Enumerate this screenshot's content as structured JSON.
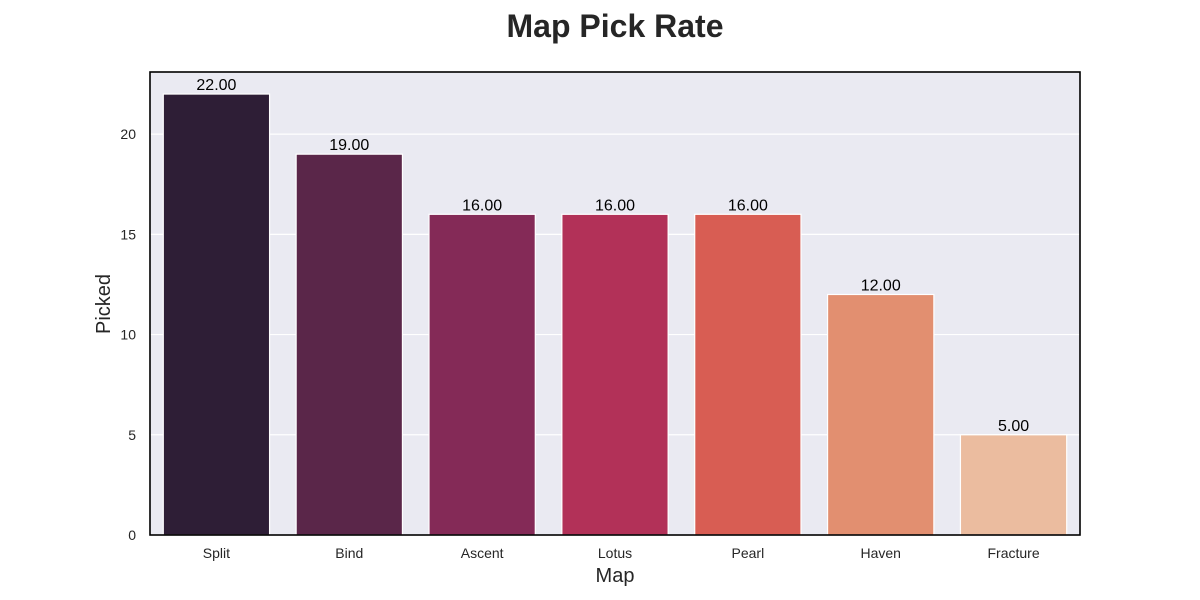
{
  "chart_data": {
    "type": "bar",
    "title": "Map Pick Rate",
    "xlabel": "Map",
    "ylabel": "Picked",
    "categories": [
      "Split",
      "Bind",
      "Ascent",
      "Lotus",
      "Pearl",
      "Haven",
      "Fracture"
    ],
    "values": [
      22,
      19,
      16,
      16,
      16,
      12,
      5
    ],
    "value_labels": [
      "22.00",
      "19.00",
      "16.00",
      "16.00",
      "16.00",
      "12.00",
      "5.00"
    ],
    "ylim": [
      0,
      23.1
    ],
    "yticks": [
      0,
      5,
      10,
      15,
      20
    ],
    "grid": "horizontal",
    "colors": [
      "#2e1e36",
      "#5a2649",
      "#842a57",
      "#b23158",
      "#d85d53",
      "#e28f70",
      "#ebbc9f"
    ],
    "background_color": "#eaeaf2",
    "grid_color": "#ffffff"
  }
}
